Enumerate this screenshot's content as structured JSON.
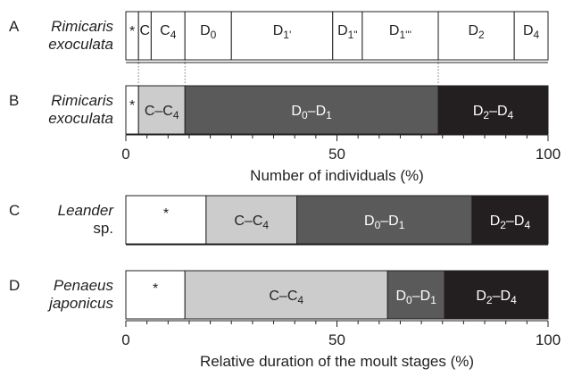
{
  "chart_data": [
    {
      "type": "bar",
      "orientation": "horizontal",
      "stacked": true,
      "xlabel": "Number of individuals (%)",
      "xlim": [
        0,
        100
      ],
      "xticks": [
        0,
        50,
        100
      ],
      "rows": [
        {
          "letter": "A",
          "species_line1": "Rimicaris",
          "species_line2": "exoculata",
          "italic": true,
          "segments": [
            {
              "stage": "*",
              "label": "*",
              "start": 0,
              "end": 3,
              "color": "#ffffff"
            },
            {
              "stage": "C",
              "label": "C",
              "start": 3,
              "end": 6,
              "color": "#ffffff"
            },
            {
              "stage": "C4",
              "label": "C",
              "sub": "4",
              "start": 6,
              "end": 14,
              "color": "#ffffff"
            },
            {
              "stage": "D0",
              "label": "D",
              "sub": "0",
              "start": 14,
              "end": 25,
              "color": "#ffffff"
            },
            {
              "stage": "D1'",
              "label": "D",
              "sub": "1'",
              "start": 25,
              "end": 49,
              "color": "#ffffff"
            },
            {
              "stage": "D1\"",
              "label": "D",
              "sub": "1\"",
              "start": 49,
              "end": 56,
              "color": "#ffffff"
            },
            {
              "stage": "D1'''",
              "label": "D",
              "sub": "1'''",
              "start": 56,
              "end": 74,
              "color": "#ffffff"
            },
            {
              "stage": "D2",
              "label": "D",
              "sub": "2",
              "start": 74,
              "end": 92,
              "color": "#ffffff"
            },
            {
              "stage": "D4",
              "label": "D",
              "sub": "4",
              "start": 92,
              "end": 100,
              "color": "#ffffff"
            }
          ]
        },
        {
          "letter": "B",
          "species_line1": "Rimicaris",
          "species_line2": "exoculata",
          "italic": true,
          "segments": [
            {
              "stage": "*",
              "label": "*",
              "start": 0,
              "end": 3,
              "color": "#ffffff"
            },
            {
              "stage": "C-C4",
              "label": "C–C",
              "sub": "4",
              "start": 3,
              "end": 14,
              "color": "#cccccc"
            },
            {
              "stage": "D0-D1",
              "label": "D",
              "sub": "0",
              "label2": "–D",
              "sub2": "1",
              "start": 14,
              "end": 74,
              "color": "#5a5a5a"
            },
            {
              "stage": "D2-D4",
              "label": "D",
              "sub": "2",
              "label2": "–D",
              "sub2": "4",
              "start": 74,
              "end": 100,
              "color": "#231f20"
            }
          ]
        }
      ]
    },
    {
      "type": "bar",
      "orientation": "horizontal",
      "stacked": true,
      "xlabel": "Relative duration of the moult stages (%)",
      "xlim": [
        0,
        100
      ],
      "xticks": [
        0,
        50,
        100
      ],
      "rows": [
        {
          "letter": "C",
          "species_line1": "Leander",
          "species_line2": "sp.",
          "italic": true,
          "italic2": false,
          "segments": [
            {
              "stage": "*",
              "label": "*",
              "start": 0,
              "end": 19,
              "color": "#ffffff"
            },
            {
              "stage": "C-C4",
              "label": "C–C",
              "sub": "4",
              "start": 19,
              "end": 40.5,
              "color": "#cccccc"
            },
            {
              "stage": "D0-D1",
              "label": "D",
              "sub": "0",
              "label2": "–D",
              "sub2": "1",
              "start": 40.5,
              "end": 82,
              "color": "#5a5a5a"
            },
            {
              "stage": "D2-D4",
              "label": "D",
              "sub": "2",
              "label2": "–D",
              "sub2": "4",
              "start": 82,
              "end": 100,
              "color": "#231f20"
            }
          ]
        },
        {
          "letter": "D",
          "species_line1": "Penaeus",
          "species_line2": "japonicus",
          "italic": true,
          "segments": [
            {
              "stage": "*",
              "label": "*",
              "start": 0,
              "end": 14,
              "color": "#ffffff"
            },
            {
              "stage": "C-C4",
              "label": "C–C",
              "sub": "4",
              "start": 14,
              "end": 62,
              "color": "#cccccc"
            },
            {
              "stage": "D0-D1",
              "label": "D",
              "sub": "0",
              "label2": "–D",
              "sub2": "1",
              "start": 62,
              "end": 75.5,
              "color": "#5a5a5a"
            },
            {
              "stage": "D2-D4",
              "label": "D",
              "sub": "2",
              "label2": "–D",
              "sub2": "4",
              "start": 75.5,
              "end": 100,
              "color": "#231f20"
            }
          ]
        }
      ]
    }
  ]
}
